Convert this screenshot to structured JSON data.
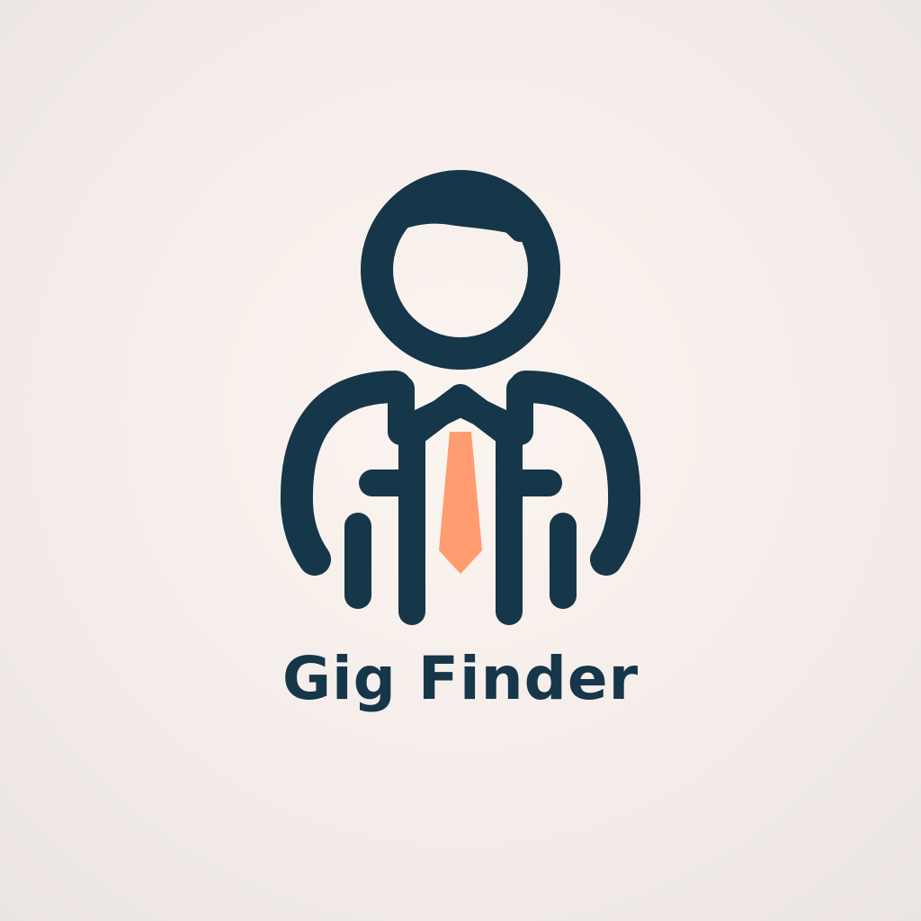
{
  "brand": {
    "name": "Gig Finder"
  },
  "colors": {
    "primary": "#16364a",
    "accent": "#ff9c70",
    "background": "#f6eeea"
  },
  "icons": {
    "logo": "person-with-tie-icon"
  }
}
